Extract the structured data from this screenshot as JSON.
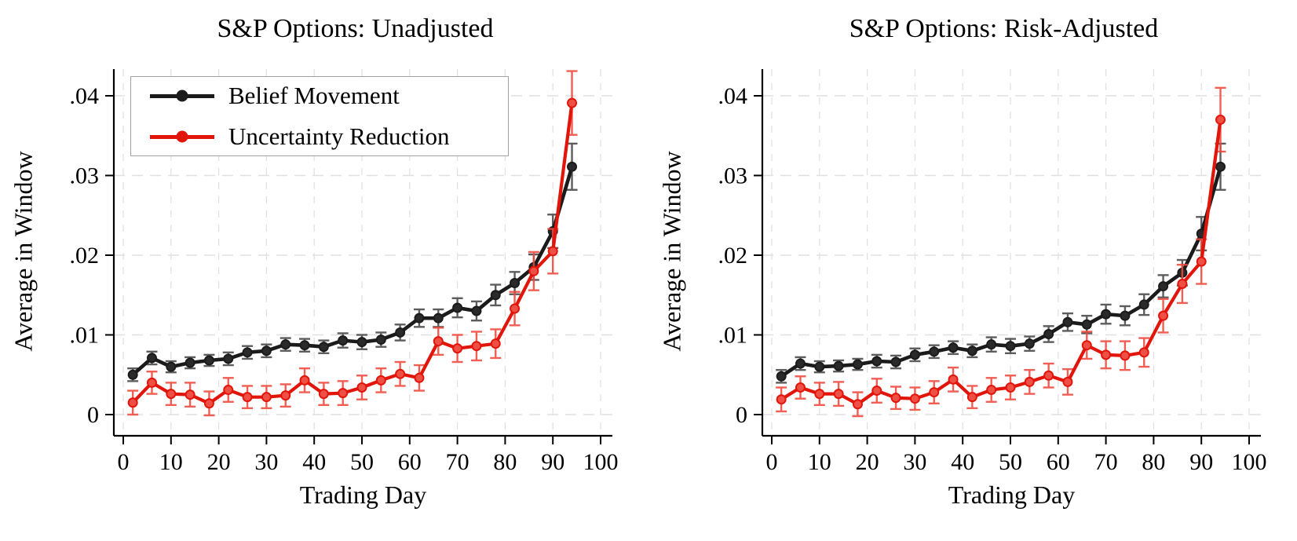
{
  "style": {
    "background": "#ffffff",
    "axis_color": "#000000",
    "grid_color": "#e0e0e0",
    "belief_color": "#1b1b1b",
    "belief_marker_fill": "#2a2a2a",
    "belief_errorbar_color": "#474747",
    "uncertainty_color": "#e2150a",
    "uncertainty_marker_fill": "#ef5045",
    "uncertainty_errorbar_color": "#f0483c"
  },
  "chart_data": [
    {
      "type": "line",
      "title": "S&P Options: Unadjusted",
      "xlabel": "Trading Day",
      "ylabel": "Average in Window",
      "legend_visible": true,
      "legend_position": "top-left",
      "grid": true,
      "xlim": [
        -2,
        102.5
      ],
      "ylim": [
        -0.0027,
        0.0431
      ],
      "xticks": [
        0,
        10,
        20,
        30,
        40,
        50,
        60,
        70,
        80,
        90,
        100
      ],
      "yticks": [
        0,
        0.01,
        0.02,
        0.03,
        0.04
      ],
      "ytick_labels": [
        "0",
        ".01",
        ".02",
        ".03",
        ".04"
      ],
      "x": [
        2,
        6,
        10,
        14,
        18,
        22,
        26,
        30,
        34,
        38,
        42,
        46,
        50,
        54,
        58,
        62,
        66,
        70,
        74,
        78,
        82,
        86,
        90,
        94
      ],
      "series": [
        {
          "name": "Belief Movement",
          "color": "#1b1b1b",
          "values": [
            0.005,
            0.0071,
            0.006,
            0.0065,
            0.0068,
            0.007,
            0.0078,
            0.008,
            0.0088,
            0.0087,
            0.0085,
            0.0093,
            0.0091,
            0.0094,
            0.0103,
            0.0121,
            0.0121,
            0.0134,
            0.013,
            0.015,
            0.0165,
            0.0185,
            0.023,
            0.0311
          ],
          "ci_halfwidth": [
            0.0008,
            0.0008,
            0.0007,
            0.0007,
            0.0007,
            0.0008,
            0.0008,
            0.0008,
            0.0008,
            0.0008,
            0.0008,
            0.0009,
            0.0009,
            0.0009,
            0.001,
            0.0011,
            0.0011,
            0.0012,
            0.0012,
            0.0013,
            0.0014,
            0.0016,
            0.0021,
            0.0029
          ]
        },
        {
          "name": "Uncertainty Reduction",
          "color": "#e2150a",
          "values": [
            0.0015,
            0.004,
            0.0026,
            0.0025,
            0.0014,
            0.0031,
            0.0022,
            0.0022,
            0.0024,
            0.0043,
            0.0026,
            0.0027,
            0.0034,
            0.0043,
            0.0051,
            0.0046,
            0.0092,
            0.0083,
            0.0086,
            0.0089,
            0.0133,
            0.018,
            0.0205,
            0.0391
          ],
          "ci_halfwidth": [
            0.0015,
            0.0014,
            0.0014,
            0.0015,
            0.0015,
            0.0015,
            0.0014,
            0.0014,
            0.0014,
            0.0015,
            0.0014,
            0.0015,
            0.0015,
            0.0015,
            0.0015,
            0.0016,
            0.0017,
            0.0017,
            0.0018,
            0.0018,
            0.0021,
            0.0024,
            0.0028,
            0.004
          ]
        }
      ]
    },
    {
      "type": "line",
      "title": "S&P Options: Risk-Adjusted",
      "xlabel": "Trading Day",
      "ylabel": "Average in Window",
      "legend_visible": false,
      "grid": true,
      "xlim": [
        -2,
        102.5
      ],
      "ylim": [
        -0.0027,
        0.0431
      ],
      "xticks": [
        0,
        10,
        20,
        30,
        40,
        50,
        60,
        70,
        80,
        90,
        100
      ],
      "yticks": [
        0,
        0.01,
        0.02,
        0.03,
        0.04
      ],
      "ytick_labels": [
        "0",
        ".01",
        ".02",
        ".03",
        ".04"
      ],
      "x": [
        2,
        6,
        10,
        14,
        18,
        22,
        26,
        30,
        34,
        38,
        42,
        46,
        50,
        54,
        58,
        62,
        66,
        70,
        74,
        78,
        82,
        86,
        90,
        94
      ],
      "series": [
        {
          "name": "Belief Movement",
          "color": "#1b1b1b",
          "values": [
            0.0048,
            0.0064,
            0.006,
            0.0061,
            0.0063,
            0.0067,
            0.0066,
            0.0075,
            0.0079,
            0.0084,
            0.008,
            0.0088,
            0.0086,
            0.0089,
            0.0101,
            0.0116,
            0.0113,
            0.0126,
            0.0124,
            0.0138,
            0.0161,
            0.0178,
            0.0227,
            0.0311
          ],
          "ci_halfwidth": [
            0.0008,
            0.0008,
            0.0007,
            0.0007,
            0.0007,
            0.0008,
            0.0008,
            0.0008,
            0.0008,
            0.0008,
            0.0008,
            0.0009,
            0.0009,
            0.0009,
            0.001,
            0.0011,
            0.0011,
            0.0012,
            0.0012,
            0.0013,
            0.0014,
            0.0016,
            0.0021,
            0.0029
          ]
        },
        {
          "name": "Uncertainty Reduction",
          "color": "#e2150a",
          "values": [
            0.0019,
            0.0034,
            0.0026,
            0.0026,
            0.0013,
            0.003,
            0.0021,
            0.002,
            0.0028,
            0.0044,
            0.0022,
            0.0031,
            0.0034,
            0.0041,
            0.0049,
            0.0041,
            0.0087,
            0.0075,
            0.0074,
            0.0078,
            0.0124,
            0.0164,
            0.0192,
            0.037
          ],
          "ci_halfwidth": [
            0.0015,
            0.0014,
            0.0014,
            0.0015,
            0.0015,
            0.0015,
            0.0014,
            0.0014,
            0.0014,
            0.0015,
            0.0014,
            0.0015,
            0.0015,
            0.0015,
            0.0015,
            0.0016,
            0.0017,
            0.0017,
            0.0018,
            0.0018,
            0.0021,
            0.0024,
            0.0028,
            0.004
          ]
        }
      ]
    }
  ]
}
